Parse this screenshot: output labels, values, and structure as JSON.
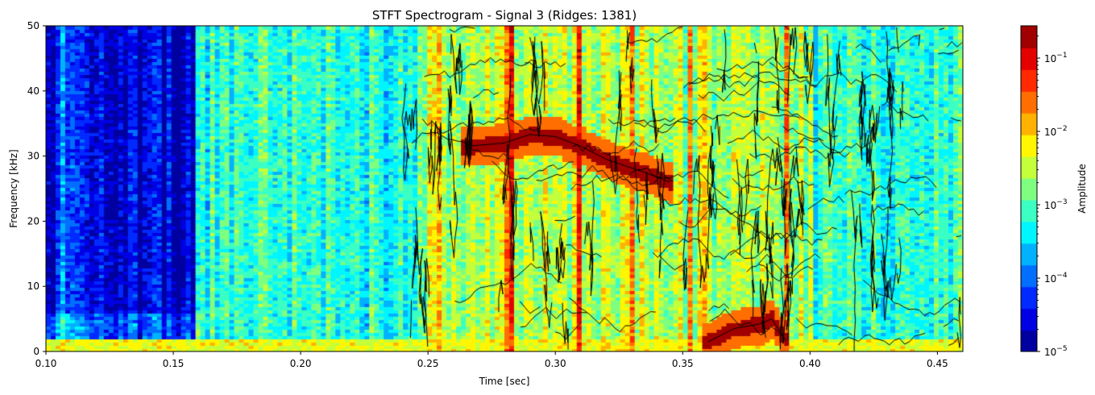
{
  "chart_data": {
    "type": "heatmap",
    "title": "STFT Spectrogram - Signal 3 (Ridges: 1381)",
    "xlabel": "Time [sec]",
    "ylabel": "Frequency [kHz]",
    "xlim": [
      0.1,
      0.46
    ],
    "ylim": [
      0,
      50
    ],
    "xticks": [
      "0.10",
      "0.15",
      "0.20",
      "0.25",
      "0.30",
      "0.35",
      "0.40",
      "0.45"
    ],
    "xtick_values": [
      0.1,
      0.15,
      0.2,
      0.25,
      0.3,
      0.35,
      0.4,
      0.45
    ],
    "yticks": [
      "0",
      "10",
      "20",
      "30",
      "40",
      "50"
    ],
    "ytick_values": [
      0,
      10,
      20,
      30,
      40,
      50
    ],
    "colormap": "jet",
    "colorbar": {
      "label": "Amplitude",
      "scale": "log",
      "range_log10": [
        -5,
        -0.56
      ],
      "levels": 15,
      "ticks": [
        {
          "base": "10",
          "exp": "−1",
          "log10": -1
        },
        {
          "base": "10",
          "exp": "−2",
          "log10": -2
        },
        {
          "base": "10",
          "exp": "−3",
          "log10": -3
        },
        {
          "base": "10",
          "exp": "−4",
          "log10": -4
        },
        {
          "base": "10",
          "exp": "−5",
          "log10": -5
        }
      ]
    },
    "ridge_count": 1381,
    "ridge_color": "#000000",
    "background_log10_by_time": [
      {
        "t0": 0.1,
        "t1": 0.103,
        "level": -4.8
      },
      {
        "t0": 0.103,
        "t1": 0.115,
        "level": -3.9
      },
      {
        "t0": 0.115,
        "t1": 0.158,
        "level": -4.7
      },
      {
        "t0": 0.158,
        "t1": 0.25,
        "level": -3.2
      },
      {
        "t0": 0.25,
        "t1": 0.345,
        "level": -2.5
      },
      {
        "t0": 0.345,
        "t1": 0.402,
        "level": -2.6
      },
      {
        "t0": 0.402,
        "t1": 0.46,
        "level": -3.1
      }
    ],
    "strong_ridges": [
      {
        "name": "high ridge",
        "points": [
          [
            0.265,
            31.5
          ],
          [
            0.28,
            32
          ],
          [
            0.29,
            33.3
          ],
          [
            0.3,
            33
          ],
          [
            0.31,
            31.5
          ],
          [
            0.32,
            29.5
          ],
          [
            0.335,
            27.5
          ],
          [
            0.345,
            26
          ]
        ],
        "log10": -0.7
      },
      {
        "name": "low ridge",
        "points": [
          [
            0.36,
            1.5
          ],
          [
            0.37,
            3.5
          ],
          [
            0.38,
            4.2
          ],
          [
            0.385,
            5
          ],
          [
            0.39,
            2
          ]
        ],
        "log10": -0.7
      }
    ]
  }
}
